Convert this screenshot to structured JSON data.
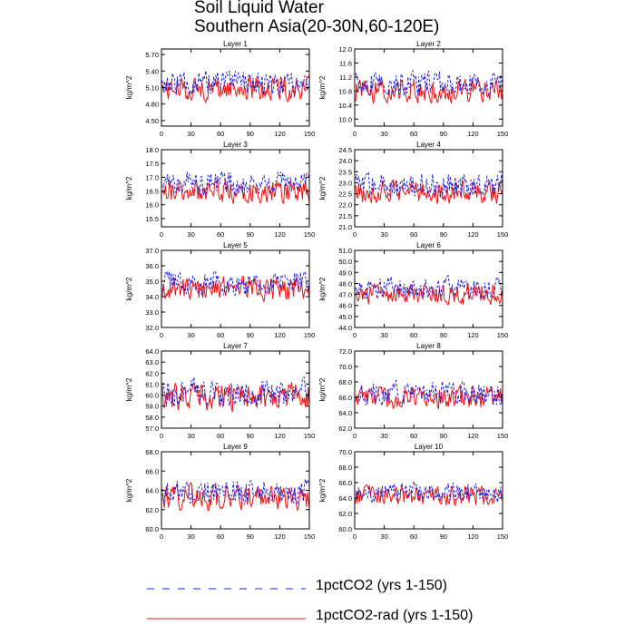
{
  "title_line1": "Soil Liquid Water",
  "title_line2": "Southern Asia(20-30N,60-120E)",
  "colors": {
    "series_a": "#2222dd",
    "series_b": "#ee1111"
  },
  "legend": [
    {
      "label": "1pctCO2 (yrs 1-150)",
      "style": "dashed",
      "color": "#2222dd"
    },
    {
      "label": "1pctCO2-rad (yrs 1-150)",
      "style": "solid",
      "color": "#ee1111"
    }
  ],
  "chart_data": [
    {
      "type": "line",
      "title": "Layer 1",
      "ylabel": "kg/m^2",
      "xlim": [
        0,
        150
      ],
      "ylim": [
        4.4,
        5.8
      ],
      "yticks": [
        "4.50",
        "4.80",
        "5.10",
        "5.40",
        "5.70"
      ],
      "ytick_values": [
        4.5,
        4.8,
        5.1,
        5.4,
        5.7
      ],
      "xticks": [
        "0",
        "30",
        "60",
        "90",
        "120",
        "150"
      ],
      "mean_a": 5.18,
      "mean_b": 5.08,
      "amp": 0.22,
      "series": [
        {
          "name": "1pctCO2 (yrs 1-150)"
        },
        {
          "name": "1pctCO2-rad (yrs 1-150)"
        }
      ]
    },
    {
      "type": "line",
      "title": "Layer 2",
      "ylabel": "kg/m^2",
      "xlim": [
        0,
        150
      ],
      "ylim": [
        9.8,
        12.0
      ],
      "yticks": [
        "10.0",
        "10.4",
        "10.8",
        "11.2",
        "11.6",
        "12.0"
      ],
      "ytick_values": [
        10.0,
        10.4,
        10.8,
        11.2,
        11.6,
        12.0
      ],
      "xticks": [
        "0",
        "30",
        "60",
        "90",
        "120",
        "150"
      ],
      "mean_a": 11.0,
      "mean_b": 10.8,
      "amp": 0.35,
      "series": [
        {
          "name": "1pctCO2 (yrs 1-150)"
        },
        {
          "name": "1pctCO2-rad (yrs 1-150)"
        }
      ]
    },
    {
      "type": "line",
      "title": "Layer 3",
      "ylabel": "kg/m^2",
      "xlim": [
        0,
        150
      ],
      "ylim": [
        15.2,
        18.0
      ],
      "yticks": [
        "15.5",
        "16.0",
        "16.5",
        "17.0",
        "17.5",
        "18.0"
      ],
      "ytick_values": [
        15.5,
        16.0,
        16.5,
        17.0,
        17.5,
        18.0
      ],
      "xticks": [
        "0",
        "30",
        "60",
        "90",
        "120",
        "150"
      ],
      "mean_a": 16.8,
      "mean_b": 16.5,
      "amp": 0.45,
      "series": [
        {
          "name": "1pctCO2 (yrs 1-150)"
        },
        {
          "name": "1pctCO2-rad (yrs 1-150)"
        }
      ]
    },
    {
      "type": "line",
      "title": "Layer 4",
      "ylabel": "kg/m^2",
      "xlim": [
        0,
        150
      ],
      "ylim": [
        21.0,
        24.5
      ],
      "yticks": [
        "21.0",
        "21.5",
        "22.0",
        "22.5",
        "23.0",
        "23.5",
        "24.0",
        "24.5"
      ],
      "ytick_values": [
        21.0,
        21.5,
        22.0,
        22.5,
        23.0,
        23.5,
        24.0,
        24.5
      ],
      "xticks": [
        "0",
        "30",
        "60",
        "90",
        "120",
        "150"
      ],
      "mean_a": 22.9,
      "mean_b": 22.6,
      "amp": 0.55,
      "series": [
        {
          "name": "1pctCO2 (yrs 1-150)"
        },
        {
          "name": "1pctCO2-rad (yrs 1-150)"
        }
      ]
    },
    {
      "type": "line",
      "title": "Layer 5",
      "ylabel": "kg/m^2",
      "xlim": [
        0,
        150
      ],
      "ylim": [
        32.0,
        37.0
      ],
      "yticks": [
        "32.0",
        "33.0",
        "34.0",
        "35.0",
        "36.0",
        "37.0"
      ],
      "ytick_values": [
        32.0,
        33.0,
        34.0,
        35.0,
        36.0,
        37.0
      ],
      "xticks": [
        "0",
        "30",
        "60",
        "90",
        "120",
        "150"
      ],
      "mean_a": 34.9,
      "mean_b": 34.5,
      "amp": 0.8,
      "series": [
        {
          "name": "1pctCO2 (yrs 1-150)"
        },
        {
          "name": "1pctCO2-rad (yrs 1-150)"
        }
      ]
    },
    {
      "type": "line",
      "title": "Layer 6",
      "ylabel": "kg/m^2",
      "xlim": [
        0,
        150
      ],
      "ylim": [
        44.0,
        51.0
      ],
      "yticks": [
        "44.0",
        "45.0",
        "46.0",
        "47.0",
        "48.0",
        "49.0",
        "50.0",
        "51.0"
      ],
      "ytick_values": [
        44.0,
        45.0,
        46.0,
        47.0,
        48.0,
        49.0,
        50.0,
        51.0
      ],
      "xticks": [
        "0",
        "30",
        "60",
        "90",
        "120",
        "150"
      ],
      "mean_a": 47.6,
      "mean_b": 47.0,
      "amp": 1.0,
      "series": [
        {
          "name": "1pctCO2 (yrs 1-150)"
        },
        {
          "name": "1pctCO2-rad (yrs 1-150)"
        }
      ]
    },
    {
      "type": "line",
      "title": "Layer 7",
      "ylabel": "kg/m^2",
      "xlim": [
        0,
        150
      ],
      "ylim": [
        57.0,
        64.0
      ],
      "yticks": [
        "57.0",
        "58.0",
        "59.0",
        "60.0",
        "61.0",
        "62.0",
        "63.0",
        "64.0"
      ],
      "ytick_values": [
        57.0,
        58.0,
        59.0,
        60.0,
        61.0,
        62.0,
        63.0,
        64.0
      ],
      "xticks": [
        "0",
        "30",
        "60",
        "90",
        "120",
        "150"
      ],
      "mean_a": 60.2,
      "mean_b": 59.9,
      "amp": 1.3,
      "series": [
        {
          "name": "1pctCO2 (yrs 1-150)"
        },
        {
          "name": "1pctCO2-rad (yrs 1-150)"
        }
      ]
    },
    {
      "type": "line",
      "title": "Layer 8",
      "ylabel": "kg/m^2",
      "xlim": [
        0,
        150
      ],
      "ylim": [
        62.0,
        72.0
      ],
      "yticks": [
        "62.0",
        "64.0",
        "66.0",
        "68.0",
        "70.0",
        "72.0"
      ],
      "ytick_values": [
        62.0,
        64.0,
        66.0,
        68.0,
        70.0,
        72.0
      ],
      "xticks": [
        "0",
        "30",
        "60",
        "90",
        "120",
        "150"
      ],
      "mean_a": 66.5,
      "mean_b": 66.0,
      "amp": 1.5,
      "series": [
        {
          "name": "1pctCO2 (yrs 1-150)"
        },
        {
          "name": "1pctCO2-rad (yrs 1-150)"
        }
      ]
    },
    {
      "type": "line",
      "title": "Layer 9",
      "ylabel": "kg/m^2",
      "xlim": [
        0,
        150
      ],
      "ylim": [
        60.0,
        68.0
      ],
      "yticks": [
        "60.0",
        "62.0",
        "64.0",
        "66.0",
        "68.0"
      ],
      "ytick_values": [
        60.0,
        62.0,
        64.0,
        66.0,
        68.0
      ],
      "xticks": [
        "0",
        "30",
        "60",
        "90",
        "120",
        "150"
      ],
      "mean_a": 63.8,
      "mean_b": 63.3,
      "amp": 1.3,
      "series": [
        {
          "name": "1pctCO2 (yrs 1-150)"
        },
        {
          "name": "1pctCO2-rad (yrs 1-150)"
        }
      ]
    },
    {
      "type": "line",
      "title": "Layer 10",
      "ylabel": "kg/m^2",
      "xlim": [
        0,
        150
      ],
      "ylim": [
        60.0,
        70.0
      ],
      "yticks": [
        "60.0",
        "62.0",
        "64.0",
        "66.0",
        "68.0",
        "70.0"
      ],
      "ytick_values": [
        60.0,
        62.0,
        64.0,
        66.0,
        68.0,
        70.0
      ],
      "xticks": [
        "0",
        "30",
        "60",
        "90",
        "120",
        "150"
      ],
      "mean_a": 64.8,
      "mean_b": 64.3,
      "amp": 1.3,
      "series": [
        {
          "name": "1pctCO2 (yrs 1-150)"
        },
        {
          "name": "1pctCO2-rad (yrs 1-150)"
        }
      ]
    }
  ]
}
